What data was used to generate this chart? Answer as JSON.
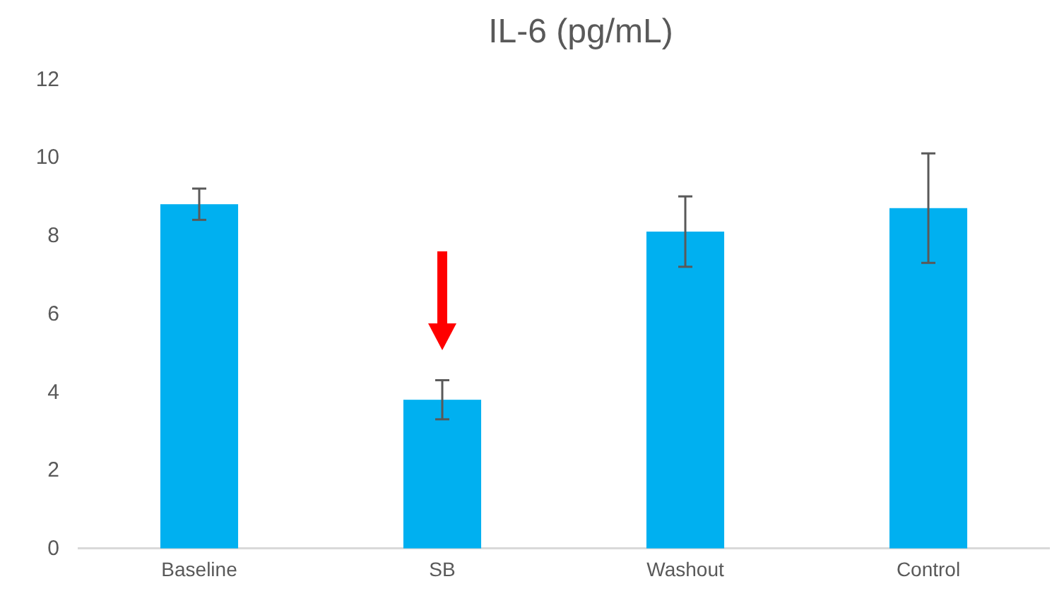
{
  "chart_data": {
    "type": "bar",
    "title": "IL-6 (pg/mL)",
    "categories": [
      "Baseline",
      "SB",
      "Washout",
      "Control"
    ],
    "values": [
      8.8,
      3.8,
      8.1,
      8.7
    ],
    "errors": [
      0.4,
      0.5,
      0.9,
      1.4
    ],
    "color": "#00b0f0",
    "ylim": [
      0,
      12
    ],
    "yticks": [
      0,
      2,
      4,
      6,
      8,
      10,
      12
    ],
    "grid": false
  }
}
